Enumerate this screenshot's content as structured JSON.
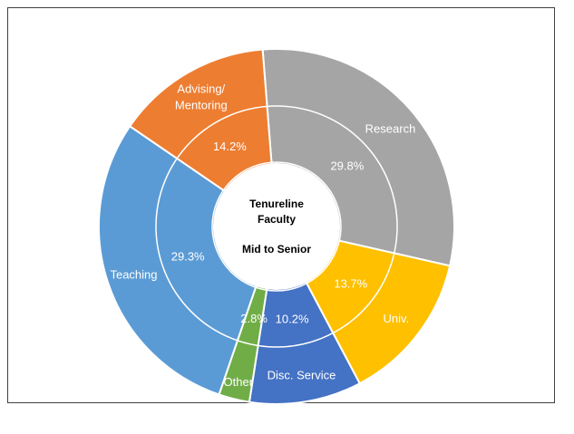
{
  "chart_data": {
    "type": "pie",
    "style": "donut",
    "center_label": {
      "line1": "Tenureline",
      "line2": "Faculty",
      "line3": "Mid to Senior"
    },
    "slices": [
      {
        "name": "Research",
        "value": 29.8,
        "value_label": "29.8%",
        "color": "#a5a5a5"
      },
      {
        "name": "Univ.",
        "value": 13.7,
        "value_label": "13.7%",
        "color": "#ffc000"
      },
      {
        "name": "Disc. Service",
        "value": 10.2,
        "value_label": "10.2%",
        "color": "#4472c4"
      },
      {
        "name": "Other",
        "value": 2.8,
        "value_label": "2.8%",
        "color": "#70ad47"
      },
      {
        "name": "Teaching",
        "value": 29.3,
        "value_label": "29.3%",
        "color": "#5b9bd5"
      },
      {
        "name": "Advising/\nMentoring",
        "value": 14.2,
        "value_label": "14.2%",
        "color": "#ed7d31"
      }
    ]
  }
}
